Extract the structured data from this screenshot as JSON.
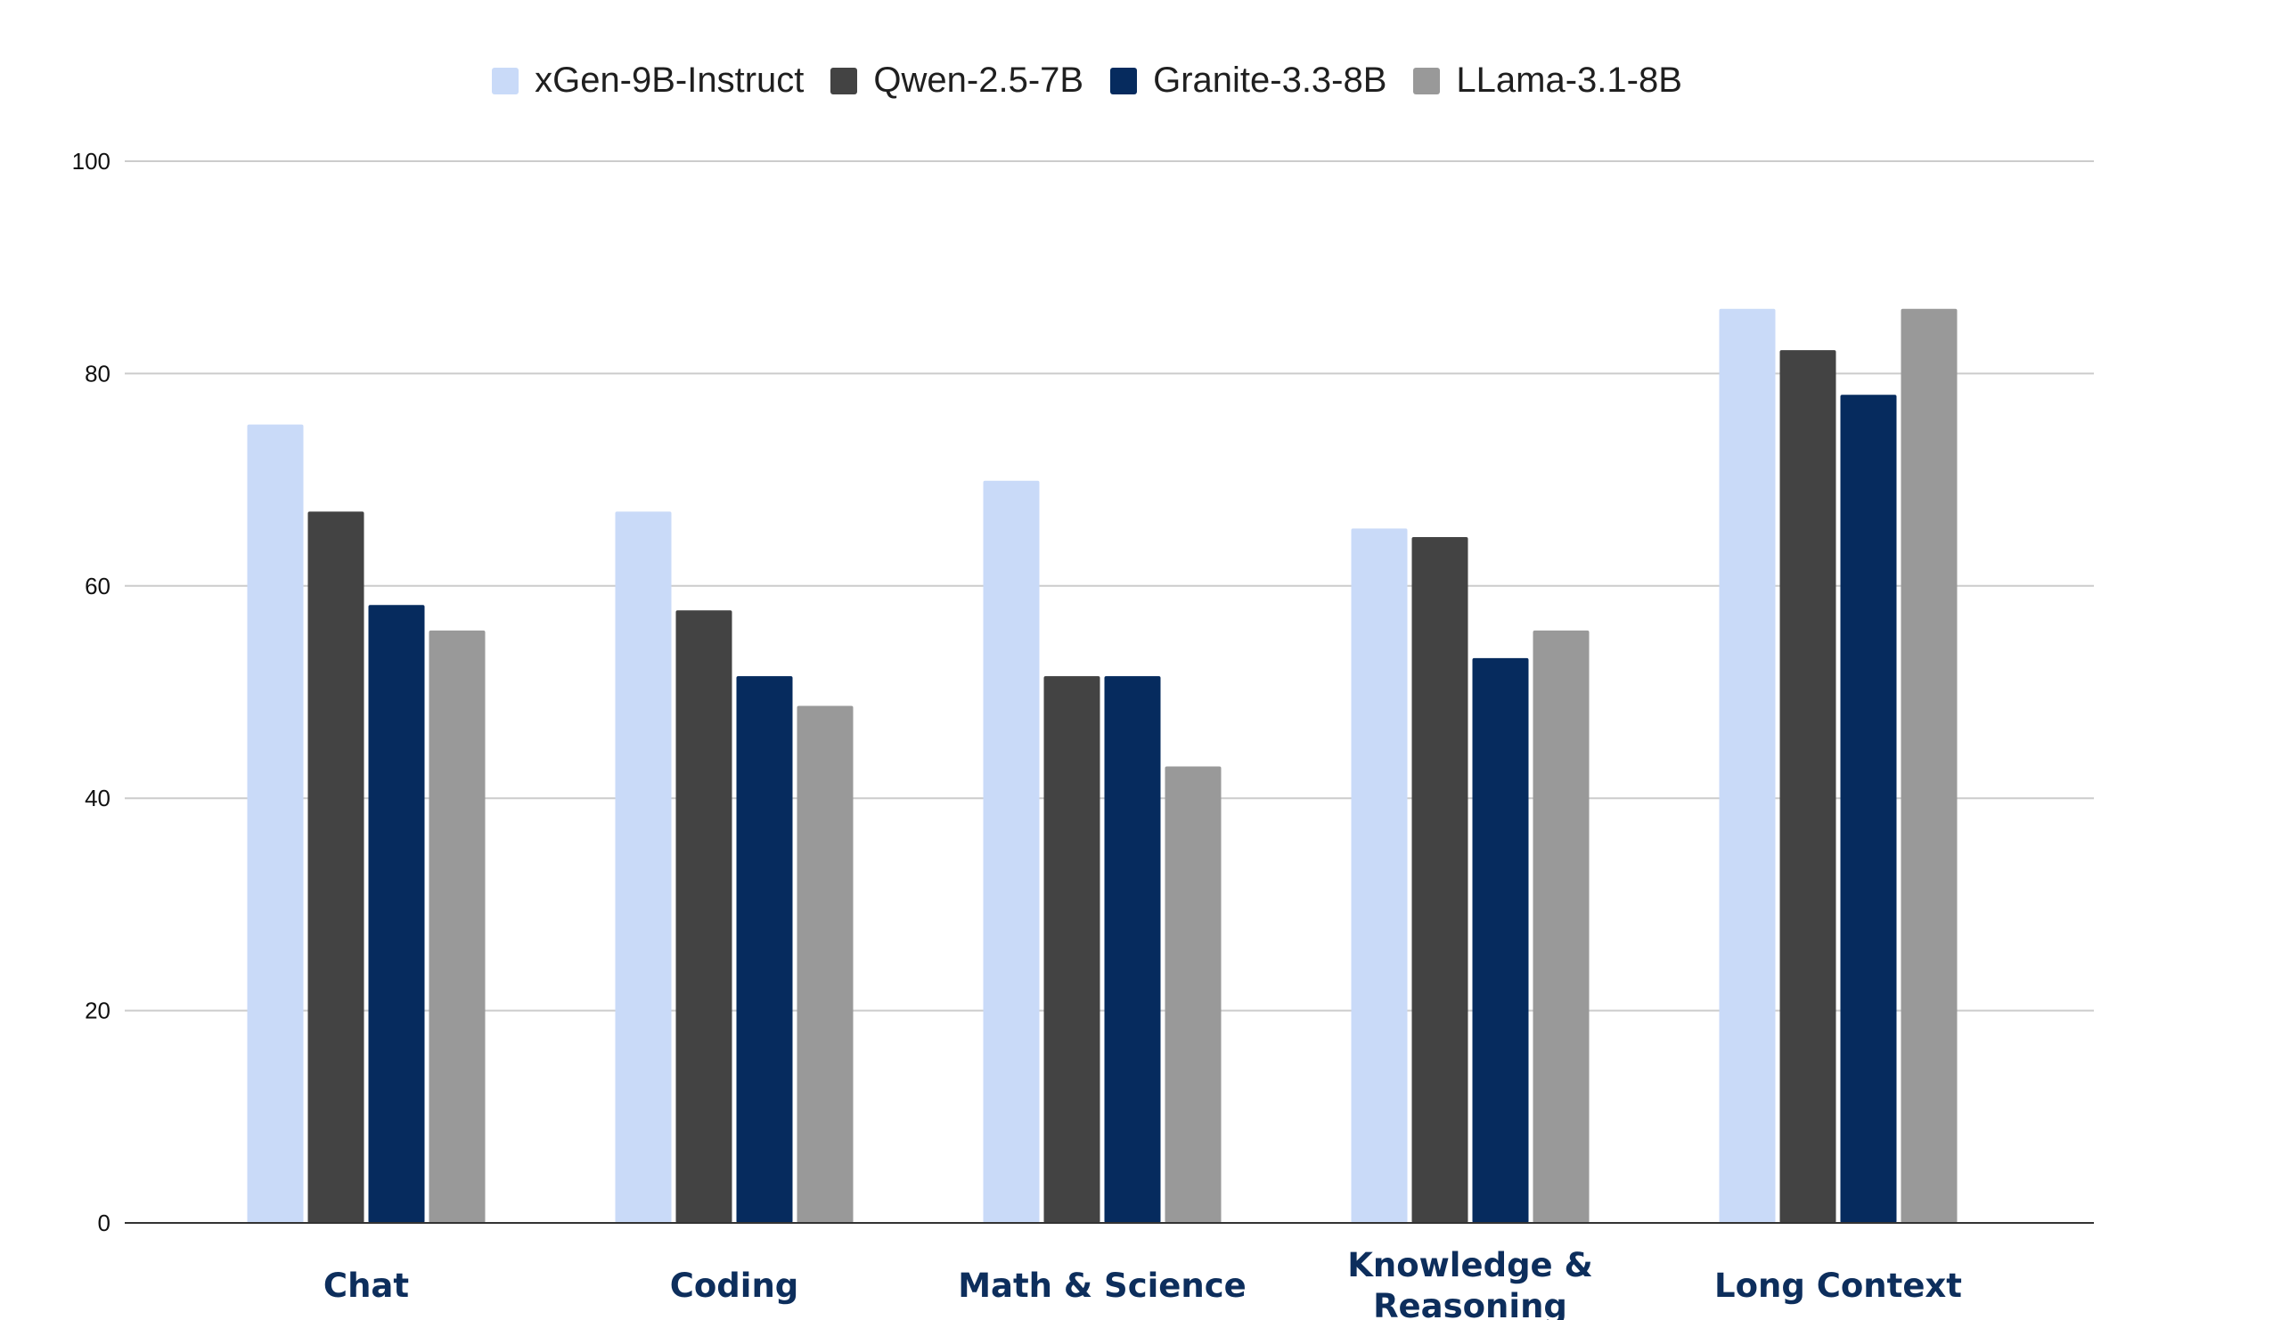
{
  "chart_data": {
    "type": "bar",
    "title": "",
    "xlabel": "",
    "ylabel": "",
    "ylim": [
      0,
      100
    ],
    "yticks": [
      "0",
      "20",
      "40",
      "60",
      "80",
      "100"
    ],
    "grid": true,
    "legend_position": "top-center",
    "categories": [
      [
        "Chat"
      ],
      [
        "Coding"
      ],
      [
        "Math & Science"
      ],
      [
        "Knowledge &",
        "Reasoning"
      ],
      [
        "Long Context"
      ]
    ],
    "series": [
      {
        "name": "xGen-9B-Instruct",
        "color": "#c9daf8",
        "values": [
          75.2,
          67.0,
          69.9,
          65.4,
          86.1
        ]
      },
      {
        "name": "Qwen-2.5-7B",
        "color": "#434343",
        "values": [
          67.0,
          57.7,
          51.5,
          64.6,
          82.2
        ]
      },
      {
        "name": "Granite-3.3-8B",
        "color": "#062b5e",
        "values": [
          58.2,
          51.5,
          51.5,
          53.2,
          78.0
        ]
      },
      {
        "name": "LLama-3.1-8B",
        "color": "#999999",
        "values": [
          55.8,
          48.7,
          43.0,
          55.8,
          86.1
        ]
      }
    ]
  }
}
